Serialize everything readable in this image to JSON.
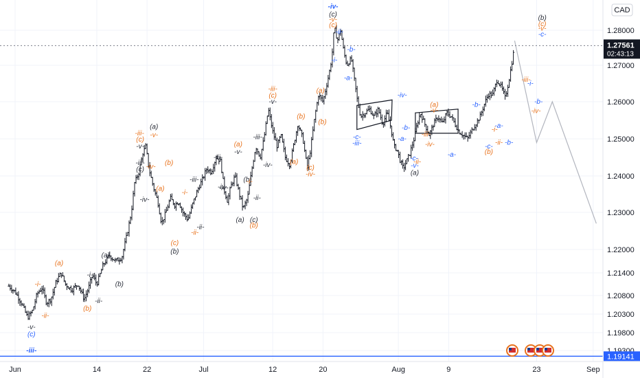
{
  "chart_data": {
    "type": "candlestick",
    "currency": "CAD",
    "ylim": [
      1.189,
      1.287
    ],
    "y_ticks": [
      "1.28000",
      "1.27000",
      "1.26000",
      "1.25000",
      "1.24000",
      "1.23000",
      "1.22000",
      "1.21400",
      "1.20800",
      "1.20300",
      "1.19800",
      "1.19300"
    ],
    "y_tick_values": [
      1.28,
      1.27,
      1.26,
      1.25,
      1.24,
      1.23,
      1.22,
      1.214,
      1.208,
      1.203,
      1.198,
      1.193
    ],
    "x_ticks": [
      "Jun",
      "14",
      "22",
      "Jul",
      "12",
      "20",
      "Aug",
      "9",
      "23",
      "Sep"
    ],
    "x_tick_days": [
      1,
      14,
      22,
      31,
      42,
      50,
      62,
      70,
      84,
      93
    ],
    "xlim_days": [
      0,
      96
    ],
    "current_price": {
      "value": 1.27561,
      "label": "1.27561",
      "countdown": "02:43:13"
    },
    "horizontal_line": {
      "value": 1.19141,
      "label": "1.19141"
    },
    "price_path": [
      [
        0.0,
        1.2105
      ],
      [
        1.0,
        1.209
      ],
      [
        2.0,
        1.206
      ],
      [
        3.0,
        1.202
      ],
      [
        3.8,
        1.204
      ],
      [
        4.5,
        1.2085
      ],
      [
        5.3,
        1.21
      ],
      [
        6.0,
        1.206
      ],
      [
        6.7,
        1.207
      ],
      [
        7.5,
        1.2115
      ],
      [
        8.3,
        1.214
      ],
      [
        9.0,
        1.211
      ],
      [
        10.0,
        1.2095
      ],
      [
        11.0,
        1.211
      ],
      [
        12.0,
        1.207
      ],
      [
        12.7,
        1.21
      ],
      [
        13.3,
        1.2135
      ],
      [
        14.0,
        1.211
      ],
      [
        15.0,
        1.216
      ],
      [
        16.0,
        1.2185
      ],
      [
        17.0,
        1.217
      ],
      [
        18.0,
        1.218
      ],
      [
        18.8,
        1.224
      ],
      [
        19.5,
        1.23
      ],
      [
        20.0,
        1.238
      ],
      [
        20.7,
        1.241
      ],
      [
        21.3,
        1.246
      ],
      [
        21.8,
        1.248
      ],
      [
        22.3,
        1.242
      ],
      [
        23.0,
        1.237
      ],
      [
        23.7,
        1.233
      ],
      [
        24.3,
        1.227
      ],
      [
        25.0,
        1.23
      ],
      [
        25.7,
        1.234
      ],
      [
        26.4,
        1.232
      ],
      [
        27.0,
        1.233
      ],
      [
        27.7,
        1.23
      ],
      [
        28.5,
        1.228
      ],
      [
        29.2,
        1.232
      ],
      [
        30.0,
        1.236
      ],
      [
        30.8,
        1.239
      ],
      [
        31.5,
        1.242
      ],
      [
        32.2,
        1.241
      ],
      [
        33.0,
        1.245
      ],
      [
        33.7,
        1.244
      ],
      [
        34.3,
        1.236
      ],
      [
        34.8,
        1.233
      ],
      [
        35.3,
        1.237
      ],
      [
        36.0,
        1.24
      ],
      [
        36.7,
        1.235
      ],
      [
        37.3,
        1.231
      ],
      [
        38.0,
        1.234
      ],
      [
        38.7,
        1.242
      ],
      [
        39.3,
        1.248
      ],
      [
        40.0,
        1.245
      ],
      [
        40.6,
        1.25
      ],
      [
        41.3,
        1.258
      ],
      [
        42.0,
        1.252
      ],
      [
        42.7,
        1.248
      ],
      [
        43.3,
        1.251
      ],
      [
        44.0,
        1.245
      ],
      [
        44.7,
        1.243
      ],
      [
        45.3,
        1.248
      ],
      [
        46.0,
        1.254
      ],
      [
        46.8,
        1.25
      ],
      [
        47.5,
        1.242
      ],
      [
        48.0,
        1.247
      ],
      [
        48.7,
        1.256
      ],
      [
        49.3,
        1.262
      ],
      [
        50.0,
        1.26
      ],
      [
        50.5,
        1.264
      ],
      [
        51.0,
        1.268
      ],
      [
        51.4,
        1.272
      ],
      [
        51.8,
        1.281
      ],
      [
        52.3,
        1.277
      ],
      [
        52.8,
        1.28
      ],
      [
        53.3,
        1.274
      ],
      [
        53.8,
        1.27
      ],
      [
        54.5,
        1.272
      ],
      [
        55.0,
        1.266
      ],
      [
        55.5,
        1.26
      ],
      [
        56.0,
        1.256
      ],
      [
        56.7,
        1.257
      ],
      [
        57.4,
        1.258
      ],
      [
        58.1,
        1.256
      ],
      [
        58.8,
        1.258
      ],
      [
        59.5,
        1.254
      ],
      [
        60.2,
        1.257
      ],
      [
        60.8,
        1.253
      ],
      [
        61.3,
        1.248
      ],
      [
        61.8,
        1.247
      ],
      [
        62.3,
        1.244
      ],
      [
        62.8,
        1.242
      ],
      [
        63.3,
        1.244
      ],
      [
        63.8,
        1.246
      ],
      [
        64.5,
        1.25
      ],
      [
        65.0,
        1.254
      ],
      [
        65.5,
        1.257
      ],
      [
        66.2,
        1.254
      ],
      [
        66.9,
        1.251
      ],
      [
        67.6,
        1.254
      ],
      [
        68.3,
        1.256
      ],
      [
        69.0,
        1.254
      ],
      [
        69.7,
        1.257
      ],
      [
        70.4,
        1.256
      ],
      [
        71.0,
        1.254
      ],
      [
        71.6,
        1.252
      ],
      [
        72.3,
        1.251
      ],
      [
        73.0,
        1.25
      ],
      [
        73.6,
        1.252
      ],
      [
        74.3,
        1.254
      ],
      [
        75.0,
        1.256
      ],
      [
        75.6,
        1.259
      ],
      [
        76.3,
        1.262
      ],
      [
        77.0,
        1.262
      ],
      [
        77.7,
        1.266
      ],
      [
        78.4,
        1.264
      ],
      [
        79.0,
        1.261
      ],
      [
        79.5,
        1.265
      ],
      [
        80.0,
        1.27
      ],
      [
        80.5,
        1.2756
      ]
    ],
    "projection_path": [
      [
        80.5,
        1.277
      ],
      [
        84.0,
        1.249
      ],
      [
        86.5,
        1.26
      ],
      [
        93.5,
        1.227
      ]
    ],
    "triangles": [
      {
        "points": [
          [
            55.4,
            1.259
          ],
          [
            61.0,
            1.2605
          ],
          [
            60.9,
            1.255
          ],
          [
            55.4,
            1.2525
          ]
        ]
      },
      {
        "points": [
          [
            64.7,
            1.257
          ],
          [
            71.5,
            1.258
          ],
          [
            71.5,
            1.2515
          ],
          [
            64.7,
            1.2515
          ]
        ]
      }
    ],
    "wave_labels": [
      {
        "t": "-iv-",
        "d": 51.6,
        "v": 1.2868,
        "c": "blue",
        "bold": true
      },
      {
        "t": "(c)",
        "d": 51.6,
        "v": 1.2845,
        "c": "dark"
      },
      {
        "t": "-v-",
        "d": 51.6,
        "v": 1.283,
        "c": "orange"
      },
      {
        "t": "(c)",
        "d": 51.6,
        "v": 1.2815,
        "c": "orange"
      },
      {
        "t": "-ii-",
        "d": 52.6,
        "v": 1.2795,
        "c": "blue"
      },
      {
        "t": "-b-",
        "d": 54.5,
        "v": 1.2745,
        "c": "blue"
      },
      {
        "t": "-i-",
        "d": 51.8,
        "v": 1.2715,
        "c": "blue"
      },
      {
        "t": "-a-",
        "d": 54.0,
        "v": 1.2665,
        "c": "blue"
      },
      {
        "t": "(a)",
        "d": 49.6,
        "v": 1.263,
        "c": "orange"
      },
      {
        "t": "(b)",
        "d": 49.9,
        "v": 1.2545,
        "c": "orange"
      },
      {
        "t": "-iii-",
        "d": 42.0,
        "v": 1.2635,
        "c": "orange"
      },
      {
        "t": "(c)",
        "d": 42.0,
        "v": 1.2617,
        "c": "orange"
      },
      {
        "t": "-v-",
        "d": 42.0,
        "v": 1.26,
        "c": "dark"
      },
      {
        "t": "(b)",
        "d": 46.5,
        "v": 1.256,
        "c": "orange"
      },
      {
        "t": "(a)",
        "d": 45.4,
        "v": 1.2438,
        "c": "orange"
      },
      {
        "t": "(c)",
        "d": 48.0,
        "v": 1.2422,
        "c": "orange"
      },
      {
        "t": "-iv-",
        "d": 48.0,
        "v": 1.2405,
        "c": "orange"
      },
      {
        "t": "-iii-",
        "d": 39.6,
        "v": 1.2505,
        "c": "dark"
      },
      {
        "t": "-iv-",
        "d": 41.2,
        "v": 1.243,
        "c": "dark"
      },
      {
        "t": "(a)",
        "d": 36.5,
        "v": 1.2485,
        "c": "orange"
      },
      {
        "t": "-v-",
        "d": 36.5,
        "v": 1.2465,
        "c": "dark"
      },
      {
        "t": "-iii-",
        "d": 33.3,
        "v": 1.245,
        "c": "dark"
      },
      {
        "t": "-iv-",
        "d": 34.0,
        "v": 1.237,
        "c": "dark"
      },
      {
        "t": "(b)",
        "d": 38.0,
        "v": 1.239,
        "c": "dark"
      },
      {
        "t": "-i-",
        "d": 38.3,
        "v": 1.2385,
        "c": "orange"
      },
      {
        "t": "-ii-",
        "d": 39.5,
        "v": 1.234,
        "c": "dark"
      },
      {
        "t": "(a)",
        "d": 36.8,
        "v": 1.228,
        "c": "dark"
      },
      {
        "t": "(c)",
        "d": 39.0,
        "v": 1.228,
        "c": "dark"
      },
      {
        "t": "(b)",
        "d": 39.0,
        "v": 1.2265,
        "c": "orange"
      },
      {
        "t": "-iii-",
        "d": 29.5,
        "v": 1.239,
        "c": "dark"
      },
      {
        "t": "-iv-",
        "d": 34.2,
        "v": 1.2367,
        "c": "dark"
      },
      {
        "t": "-ii-",
        "d": 30.5,
        "v": 1.226,
        "c": "dark"
      },
      {
        "t": "-i-",
        "d": 28.0,
        "v": 1.2355,
        "c": "orange"
      },
      {
        "t": "-ii-",
        "d": 29.6,
        "v": 1.2245,
        "c": "orange"
      },
      {
        "t": "(c)",
        "d": 26.4,
        "v": 1.2218,
        "c": "orange"
      },
      {
        "t": "(b)",
        "d": 26.4,
        "v": 1.2195,
        "c": "dark"
      },
      {
        "t": "(b)",
        "d": 25.5,
        "v": 1.2435,
        "c": "orange"
      },
      {
        "t": "(a)",
        "d": 24.1,
        "v": 1.2365,
        "c": "orange"
      },
      {
        "t": "-iii-",
        "d": 20.8,
        "v": 1.2515,
        "c": "orange"
      },
      {
        "t": "(c)",
        "d": 20.9,
        "v": 1.2498,
        "c": "orange"
      },
      {
        "t": "-v-",
        "d": 23.1,
        "v": 1.251,
        "c": "orange"
      },
      {
        "t": "(a)",
        "d": 23.1,
        "v": 1.2532,
        "c": "dark"
      },
      {
        "t": "-v-",
        "d": 20.9,
        "v": 1.248,
        "c": "dark"
      },
      {
        "t": "-iii-",
        "d": 20.9,
        "v": 1.2435,
        "c": "dark"
      },
      {
        "t": "(c)",
        "d": 20.9,
        "v": 1.2418,
        "c": "dark"
      },
      {
        "t": "-iv-",
        "d": 22.6,
        "v": 1.2425,
        "c": "orange"
      },
      {
        "t": "-iv-",
        "d": 21.6,
        "v": 1.2335,
        "c": "dark"
      },
      {
        "t": "(a)",
        "d": 15.4,
        "v": 1.2185,
        "c": "dark"
      },
      {
        "t": "-i-",
        "d": 12.9,
        "v": 1.2135,
        "c": "dark"
      },
      {
        "t": "(b)",
        "d": 17.6,
        "v": 1.211,
        "c": "dark"
      },
      {
        "t": "-ii-",
        "d": 14.3,
        "v": 1.2065,
        "c": "dark"
      },
      {
        "t": "(b)",
        "d": 12.5,
        "v": 1.2045,
        "c": "orange"
      },
      {
        "t": "(a)",
        "d": 8.0,
        "v": 1.2165,
        "c": "orange"
      },
      {
        "t": "-i-",
        "d": 4.6,
        "v": 1.211,
        "c": "orange"
      },
      {
        "t": "-ii-",
        "d": 5.8,
        "v": 1.2025,
        "c": "orange"
      },
      {
        "t": "-v-",
        "d": 3.6,
        "v": 1.1995,
        "c": "dark"
      },
      {
        "t": "(c)",
        "d": 3.6,
        "v": 1.1975,
        "c": "blue"
      },
      {
        "t": "-iii-",
        "d": 3.6,
        "v": 1.193,
        "c": "blue",
        "bold": true
      },
      {
        "t": "-c-",
        "d": 55.4,
        "v": 1.2505,
        "c": "blue"
      },
      {
        "t": "-iii-",
        "d": 55.4,
        "v": 1.2488,
        "c": "blue"
      },
      {
        "t": "-iv-",
        "d": 62.6,
        "v": 1.2618,
        "c": "blue"
      },
      {
        "t": "-b-",
        "d": 63.2,
        "v": 1.253,
        "c": "blue"
      },
      {
        "t": "-a-",
        "d": 62.6,
        "v": 1.25,
        "c": "blue"
      },
      {
        "t": "-c-",
        "d": 64.5,
        "v": 1.2447,
        "c": "blue"
      },
      {
        "t": "-ii-",
        "d": 65.0,
        "v": 1.2438,
        "c": "orange"
      },
      {
        "t": "-v-",
        "d": 64.6,
        "v": 1.2428,
        "c": "blue"
      },
      {
        "t": "(a)",
        "d": 64.6,
        "v": 1.2408,
        "c": "dark"
      },
      {
        "t": "(a)",
        "d": 67.7,
        "v": 1.2592,
        "c": "orange"
      },
      {
        "t": "-v-",
        "d": 67.7,
        "v": 1.2577,
        "c": "orange"
      },
      {
        "t": "-iii-",
        "d": 66.4,
        "v": 1.2512,
        "c": "orange"
      },
      {
        "t": "-iv-",
        "d": 67.0,
        "v": 1.2485,
        "c": "orange"
      },
      {
        "t": "-b-",
        "d": 74.4,
        "v": 1.2592,
        "c": "blue"
      },
      {
        "t": "-a-",
        "d": 70.5,
        "v": 1.2457,
        "c": "blue"
      },
      {
        "t": "-a-",
        "d": 78.0,
        "v": 1.2535,
        "c": "blue"
      },
      {
        "t": "-i-",
        "d": 77.3,
        "v": 1.2525,
        "c": "orange"
      },
      {
        "t": "-c-",
        "d": 76.4,
        "v": 1.248,
        "c": "blue"
      },
      {
        "t": "(b)",
        "d": 76.4,
        "v": 1.2465,
        "c": "orange"
      },
      {
        "t": "-ii-",
        "d": 78.0,
        "v": 1.249,
        "c": "orange"
      },
      {
        "t": "-b-",
        "d": 79.6,
        "v": 1.249,
        "c": "blue"
      },
      {
        "t": "-iii-",
        "d": 82.3,
        "v": 1.266,
        "c": "orange"
      },
      {
        "t": "-i-",
        "d": 83.0,
        "v": 1.265,
        "c": "blue"
      },
      {
        "t": "-b-",
        "d": 84.3,
        "v": 1.26,
        "c": "blue"
      },
      {
        "t": "-iv-",
        "d": 83.9,
        "v": 1.2575,
        "c": "orange"
      },
      {
        "t": "(b)",
        "d": 84.9,
        "v": 1.2835,
        "c": "dark"
      },
      {
        "t": "(c)",
        "d": 84.9,
        "v": 1.2818,
        "c": "orange"
      },
      {
        "t": "-v-",
        "d": 84.9,
        "v": 1.2805,
        "c": "orange"
      },
      {
        "t": "-c-",
        "d": 84.9,
        "v": 1.2788,
        "c": "blue"
      }
    ],
    "colors": {
      "orange": "#e8721c",
      "blue": "#2962ff",
      "dark": "#2a2e39",
      "grid": "#f0f3fa",
      "candles": "#131722",
      "projection": "#b2b5be",
      "hline": "#2962ff",
      "price_badge": "#131722"
    }
  }
}
